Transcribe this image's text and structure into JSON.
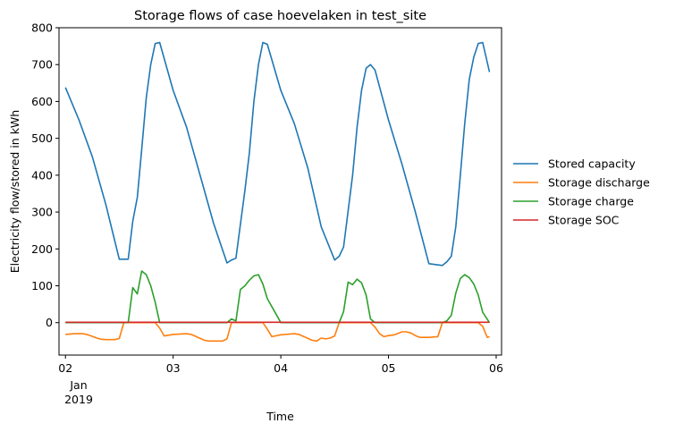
{
  "chart_data": {
    "type": "line",
    "title": "Storage flows of case hoevelaken in test_site",
    "xlabel": "Time",
    "ylabel": "Electricity flow/stored in kWh",
    "x_unit": "day",
    "xlim": [
      1.94,
      6.05
    ],
    "ylim": [
      -88,
      800
    ],
    "yticks": [
      0,
      100,
      200,
      300,
      400,
      500,
      600,
      700,
      800
    ],
    "yticklabels": [
      "0",
      "100",
      "200",
      "300",
      "400",
      "500",
      "600",
      "700",
      "800"
    ],
    "xticks": [
      2,
      3,
      4,
      5,
      6
    ],
    "xticklabels": [
      "02",
      "03",
      "04",
      "05",
      "06"
    ],
    "x_secondary_label": [
      "Jan",
      "2019"
    ],
    "grid": false,
    "legend_position": "right, outside plot",
    "series": [
      {
        "name": "Stored capacity",
        "color": "#1f77b4",
        "x": [
          2.0,
          2.125,
          2.25,
          2.375,
          2.5,
          2.583,
          2.625,
          2.667,
          2.708,
          2.75,
          2.792,
          2.833,
          2.875,
          3.0,
          3.125,
          3.25,
          3.375,
          3.5,
          3.542,
          3.583,
          3.667,
          3.708,
          3.75,
          3.792,
          3.833,
          3.875,
          4.0,
          4.125,
          4.25,
          4.375,
          4.5,
          4.542,
          4.583,
          4.667,
          4.708,
          4.75,
          4.792,
          4.833,
          4.875,
          5.0,
          5.125,
          5.25,
          5.375,
          5.5,
          5.542,
          5.583,
          5.625,
          5.667,
          5.708,
          5.75,
          5.792,
          5.833,
          5.875,
          5.938
        ],
        "y": [
          638,
          550,
          450,
          320,
          172,
          172,
          275,
          340,
          470,
          610,
          700,
          757,
          760,
          630,
          530,
          400,
          270,
          162,
          170,
          175,
          360,
          460,
          600,
          700,
          760,
          755,
          630,
          540,
          420,
          260,
          170,
          180,
          205,
          400,
          530,
          630,
          690,
          700,
          685,
          550,
          430,
          300,
          160,
          155,
          165,
          180,
          260,
          400,
          540,
          660,
          720,
          757,
          760,
          680
        ]
      },
      {
        "name": "Storage discharge",
        "color": "#ff7f0e",
        "x": [
          2.0,
          2.083,
          2.167,
          2.208,
          2.292,
          2.333,
          2.375,
          2.458,
          2.5,
          2.542,
          2.625,
          2.833,
          2.875,
          2.917,
          3.0,
          3.125,
          3.167,
          3.208,
          3.292,
          3.333,
          3.375,
          3.458,
          3.5,
          3.542,
          3.583,
          3.833,
          3.875,
          3.917,
          4.0,
          4.125,
          4.167,
          4.208,
          4.292,
          4.333,
          4.375,
          4.417,
          4.458,
          4.5,
          4.542,
          4.583,
          4.833,
          4.875,
          4.917,
          4.958,
          5.0,
          5.042,
          5.083,
          5.125,
          5.167,
          5.208,
          5.25,
          5.292,
          5.333,
          5.375,
          5.458,
          5.5,
          5.542,
          5.833,
          5.875,
          5.917,
          5.938
        ],
        "y": [
          -32,
          -30,
          -30,
          -33,
          -42,
          -45,
          -46,
          -46,
          -43,
          0,
          0,
          0,
          -15,
          -36,
          -32,
          -30,
          -32,
          -37,
          -48,
          -50,
          -50,
          -50,
          -44,
          0,
          0,
          0,
          -18,
          -38,
          -33,
          -30,
          -32,
          -37,
          -48,
          -50,
          -42,
          -44,
          -42,
          -36,
          0,
          0,
          0,
          -12,
          -30,
          -38,
          -35,
          -34,
          -30,
          -25,
          -25,
          -28,
          -35,
          -40,
          -40,
          -40,
          -38,
          0,
          0,
          0,
          -10,
          -40,
          -38
        ]
      },
      {
        "name": "Storage charge",
        "color": "#2ca02c",
        "x": [
          2.0,
          2.583,
          2.625,
          2.667,
          2.708,
          2.75,
          2.792,
          2.833,
          2.875,
          3.0,
          3.5,
          3.542,
          3.583,
          3.625,
          3.667,
          3.708,
          3.75,
          3.792,
          3.833,
          3.875,
          4.0,
          4.5,
          4.542,
          4.583,
          4.625,
          4.667,
          4.708,
          4.75,
          4.792,
          4.833,
          4.875,
          5.0,
          5.5,
          5.542,
          5.583,
          5.625,
          5.667,
          5.708,
          5.75,
          5.792,
          5.833,
          5.875,
          5.938
        ],
        "y": [
          0,
          0,
          95,
          78,
          140,
          130,
          100,
          55,
          0,
          0,
          0,
          10,
          5,
          90,
          100,
          115,
          127,
          130,
          105,
          65,
          0,
          0,
          0,
          30,
          110,
          103,
          118,
          108,
          75,
          10,
          0,
          0,
          0,
          5,
          20,
          80,
          120,
          130,
          122,
          105,
          75,
          28,
          0
        ]
      },
      {
        "name": "Storage SOC",
        "color": "#d62728",
        "x": [
          2.0,
          2.5,
          3.0,
          3.5,
          4.0,
          4.5,
          5.0,
          5.5,
          5.938
        ],
        "y": [
          1,
          1,
          1,
          1,
          1,
          1,
          1,
          1,
          1
        ]
      }
    ]
  }
}
